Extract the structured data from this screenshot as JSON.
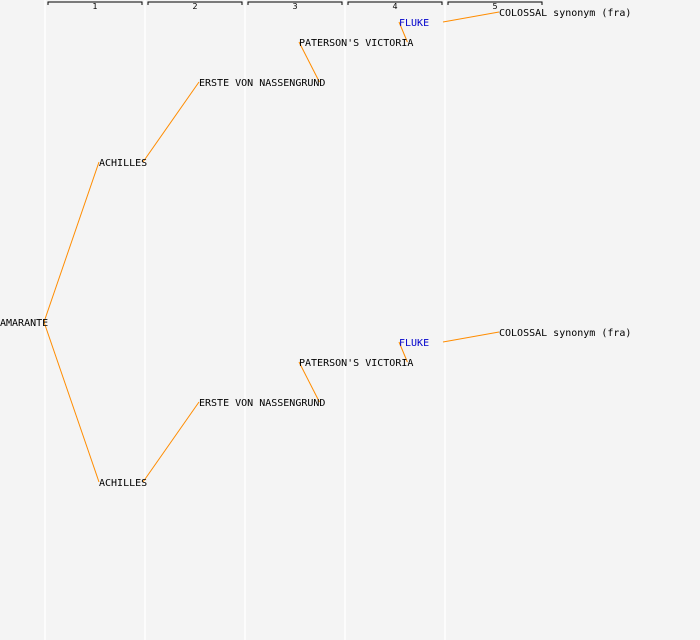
{
  "generations": [
    {
      "label": "1"
    },
    {
      "label": "2"
    },
    {
      "label": "3"
    },
    {
      "label": "4"
    },
    {
      "label": "5"
    }
  ],
  "colors": {
    "edge": "#ff8c00",
    "text": "#000000",
    "highlight": "#0000cc",
    "column_line": "#ffffff",
    "bracket": "#000000",
    "background": "#f4f4f4"
  },
  "nodes": [
    {
      "id": "n0",
      "label": "AMARANTE",
      "generation": 0,
      "highlight": false
    },
    {
      "id": "n1",
      "label": "ACHILLES",
      "generation": 1,
      "highlight": false,
      "parent": "n0"
    },
    {
      "id": "n2",
      "label": "ERSTE VON NASSENGRUND",
      "generation": 2,
      "highlight": false,
      "parent": "n1"
    },
    {
      "id": "n3",
      "label": "PATERSON'S VICTORIA",
      "generation": 3,
      "highlight": false,
      "parent": "n2"
    },
    {
      "id": "n4",
      "label": "FLUKE",
      "generation": 4,
      "highlight": true,
      "parent": "n3"
    },
    {
      "id": "n5",
      "label": "COLOSSAL synonym (fra)",
      "generation": 5,
      "highlight": false,
      "parent": "n4"
    },
    {
      "id": "n6",
      "label": "ACHILLES",
      "generation": 1,
      "highlight": false,
      "parent": "n0"
    },
    {
      "id": "n7",
      "label": "ERSTE VON NASSENGRUND",
      "generation": 2,
      "highlight": false,
      "parent": "n6"
    },
    {
      "id": "n8",
      "label": "PATERSON'S VICTORIA",
      "generation": 3,
      "highlight": false,
      "parent": "n7"
    },
    {
      "id": "n9",
      "label": "FLUKE",
      "generation": 4,
      "highlight": true,
      "parent": "n8"
    },
    {
      "id": "n10",
      "label": "COLOSSAL synonym (fra)",
      "generation": 5,
      "highlight": false,
      "parent": "n9"
    }
  ]
}
